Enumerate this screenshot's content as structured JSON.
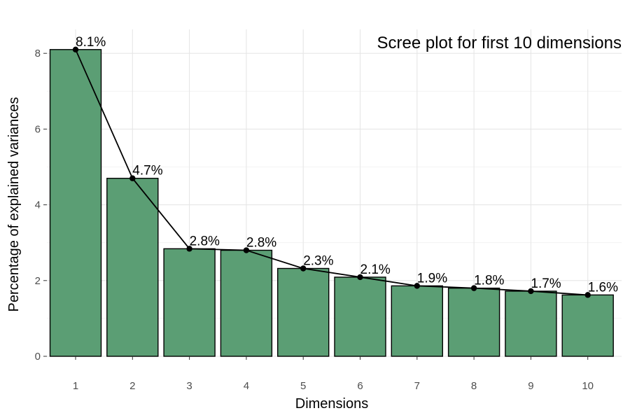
{
  "chart_data": {
    "type": "bar",
    "title": "Scree plot for first 10 dimensions",
    "xlabel": "Dimensions",
    "ylabel": "Percentage of explained variances",
    "categories": [
      "1",
      "2",
      "3",
      "4",
      "5",
      "6",
      "7",
      "8",
      "9",
      "10"
    ],
    "values": [
      8.1,
      4.7,
      2.84,
      2.8,
      2.32,
      2.09,
      1.86,
      1.8,
      1.72,
      1.62
    ],
    "data_labels": [
      "8.1%",
      "4.7%",
      "2.8%",
      "2.8%",
      "2.3%",
      "2.1%",
      "1.9%",
      "1.8%",
      "1.7%",
      "1.6%"
    ],
    "y_ticks": [
      0,
      2,
      4,
      6,
      8
    ],
    "ylim": [
      0,
      8.4
    ],
    "grid": true,
    "bar_color": "#5b9e74",
    "line_color": "#000000",
    "overlay": "line-with-points"
  }
}
